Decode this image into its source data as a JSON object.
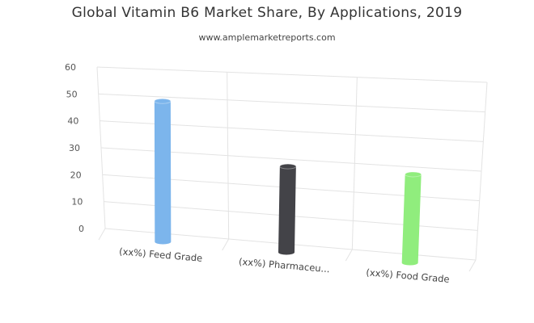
{
  "chart_data": {
    "type": "bar",
    "title": "Global Vitamin B6 Market Share, By Applications, 2019",
    "subtitle": "www.amplemarketreports.com",
    "categories": [
      "(xx%) Feed Grade",
      "(xx%) Pharmaceu...",
      "(xx%) Food Grade"
    ],
    "values": [
      49,
      29,
      29
    ],
    "colors": [
      "#7cb5ec",
      "#434348",
      "#90ed7d"
    ],
    "ylim": [
      0,
      60
    ],
    "yticks": [
      0,
      10,
      20,
      30,
      40,
      50,
      60
    ],
    "grid": true,
    "legend": "none"
  }
}
